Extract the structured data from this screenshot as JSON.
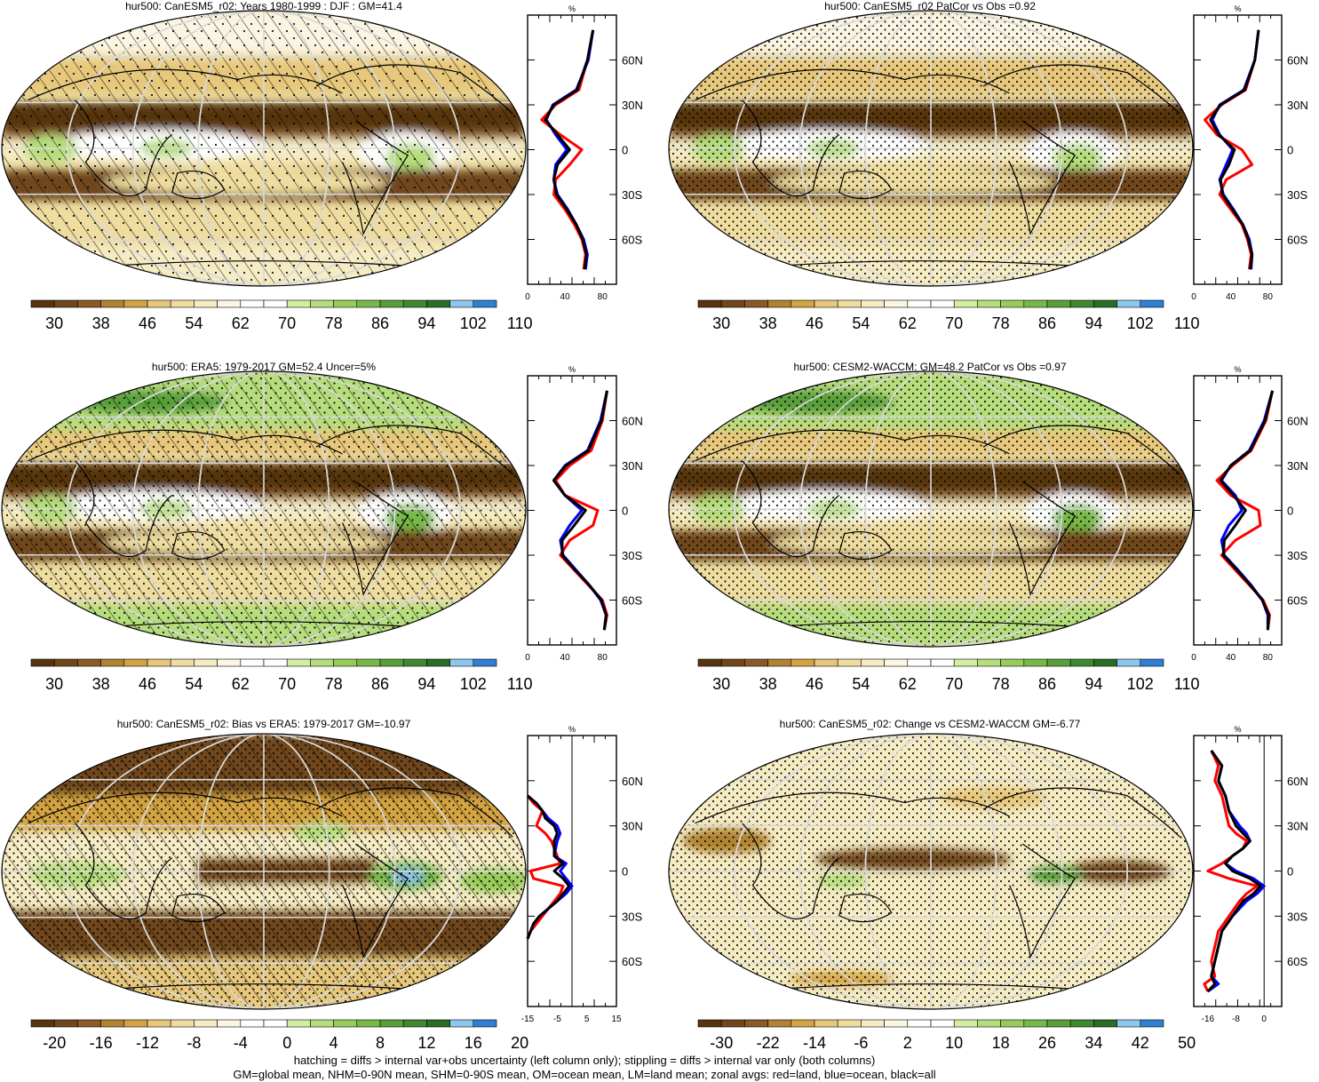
{
  "footer": {
    "line1": "hatching = diffs > internal var+obs uncertainty (left column only); stippling = diffs > internal var only (both columns)",
    "line2": "GM=global mean, NHM=0-90N mean, SHM=0-90S mean, OM=ocean mean, LM=land mean; zonal avgs: red=land, blue=ocean, black=all"
  },
  "palettes": {
    "abs": [
      "#573410",
      "#70461b",
      "#8b5a26",
      "#b08231",
      "#d4a443",
      "#e7c77c",
      "#efdda0",
      "#f6ecc4",
      "#fbf5e3",
      "#ffffff",
      "#ffffff",
      "#d3eea0",
      "#b5dd7c",
      "#97cc59",
      "#78b847",
      "#589f3a",
      "#3e8930",
      "#296d26",
      "#8cc8ee",
      "#2f7fd4"
    ],
    "diff": [
      "#573410",
      "#70461b",
      "#8b5a26",
      "#b08231",
      "#d4a443",
      "#e7c77c",
      "#efdda0",
      "#f6ecc4",
      "#fbf5e3",
      "#ffffff",
      "#ffffff",
      "#d3eea0",
      "#b5dd7c",
      "#97cc59",
      "#78b847",
      "#589f3a",
      "#3e8930",
      "#296d26",
      "#8cc8ee",
      "#2f7fd4"
    ]
  },
  "profile_colors": {
    "land": "#ff0000",
    "ocean": "#0000ff",
    "all": "#000000"
  },
  "lat_ticks": [
    "60N",
    "30N",
    "0",
    "30S",
    "60S"
  ],
  "chart_data": [
    {
      "type": "heatmap",
      "title": "hur500: CanESM5_r02: Years 1980-1999 : DJF : GM=41.4",
      "field": "abs",
      "hatch": true,
      "stipple": "light",
      "colorbar_labels": [
        "30",
        "38",
        "46",
        "54",
        "62",
        "70",
        "78",
        "86",
        "94",
        "102",
        "110"
      ],
      "profile": {
        "unit": "%",
        "xlim": [
          0,
          95
        ],
        "x_ticks": [
          0,
          40,
          80
        ],
        "lat": [
          80,
          60,
          40,
          30,
          20,
          10,
          0,
          -10,
          -20,
          -30,
          -40,
          -50,
          -60,
          -70,
          -80
        ],
        "land": [
          70,
          64,
          55,
          30,
          15,
          35,
          58,
          45,
          30,
          28,
          40,
          50,
          58,
          62,
          60
        ],
        "ocean": [
          70,
          65,
          52,
          27,
          20,
          30,
          42,
          30,
          28,
          32,
          43,
          52,
          60,
          64,
          62
        ],
        "all": [
          70,
          64,
          53,
          28,
          19,
          32,
          45,
          32,
          28,
          31,
          42,
          52,
          59,
          63,
          61
        ]
      }
    },
    {
      "type": "heatmap",
      "title": "hur500: CanESM5_r02 PatCor vs Obs =0.92",
      "field": "abs",
      "hatch": false,
      "stipple": "dense",
      "colorbar_labels": [
        "30",
        "38",
        "46",
        "54",
        "62",
        "70",
        "78",
        "86",
        "94",
        "102",
        "110"
      ],
      "profile": {
        "unit": "%",
        "xlim": [
          0,
          95
        ],
        "x_ticks": [
          0,
          40,
          80
        ],
        "lat": [
          80,
          60,
          40,
          30,
          20,
          10,
          0,
          -10,
          -20,
          -30,
          -40,
          -50,
          -60,
          -70,
          -80
        ],
        "land": [
          70,
          66,
          56,
          30,
          12,
          25,
          52,
          63,
          35,
          28,
          40,
          52,
          58,
          62,
          60
        ],
        "ocean": [
          70,
          66,
          54,
          28,
          20,
          28,
          42,
          35,
          28,
          32,
          43,
          53,
          60,
          63,
          62
        ],
        "all": [
          70,
          66,
          55,
          29,
          18,
          27,
          44,
          38,
          29,
          31,
          42,
          53,
          59,
          63,
          61
        ]
      }
    },
    {
      "type": "heatmap",
      "title": "hur500: ERA5: 1979-2017 GM=52.4 Uncer=5%",
      "field": "abs",
      "hatch": true,
      "stipple": "medium",
      "colorbar_labels": [
        "30",
        "38",
        "46",
        "54",
        "62",
        "70",
        "78",
        "86",
        "94",
        "102",
        "110"
      ],
      "profile": {
        "unit": "%",
        "xlim": [
          0,
          95
        ],
        "x_ticks": [
          0,
          40,
          80
        ],
        "lat": [
          80,
          60,
          40,
          30,
          20,
          10,
          0,
          -10,
          -20,
          -30,
          -40,
          -50,
          -60,
          -70,
          -80
        ],
        "land": [
          85,
          80,
          68,
          45,
          30,
          40,
          75,
          70,
          45,
          35,
          50,
          65,
          80,
          85,
          82
        ],
        "ocean": [
          85,
          78,
          64,
          40,
          28,
          40,
          58,
          45,
          35,
          38,
          52,
          66,
          78,
          84,
          82
        ],
        "all": [
          85,
          79,
          65,
          41,
          28,
          40,
          62,
          50,
          37,
          37,
          51,
          66,
          79,
          84,
          82
        ]
      }
    },
    {
      "type": "heatmap",
      "title": "hur500: CESM2-WACCM: GM=48.2 PatCor vs Obs =0.97",
      "field": "abs",
      "hatch": false,
      "stipple": "dense",
      "colorbar_labels": [
        "30",
        "38",
        "46",
        "54",
        "62",
        "70",
        "78",
        "86",
        "94",
        "102",
        "110"
      ],
      "profile": {
        "unit": "%",
        "xlim": [
          0,
          95
        ],
        "x_ticks": [
          0,
          40,
          80
        ],
        "lat": [
          80,
          60,
          40,
          30,
          20,
          10,
          0,
          -10,
          -20,
          -30,
          -40,
          -50,
          -60,
          -70,
          -80
        ],
        "land": [
          85,
          78,
          62,
          42,
          25,
          40,
          70,
          72,
          45,
          30,
          45,
          60,
          75,
          82,
          80
        ],
        "ocean": [
          85,
          76,
          60,
          40,
          30,
          45,
          52,
          38,
          30,
          33,
          48,
          62,
          74,
          80,
          80
        ],
        "all": [
          85,
          77,
          61,
          40,
          29,
          43,
          56,
          45,
          33,
          32,
          47,
          61,
          74,
          81,
          80
        ]
      }
    },
    {
      "type": "heatmap",
      "title": "hur500: CanESM5_r02: Bias vs ERA5: 1979-2017 GM=-10.97",
      "field": "diff",
      "hatch": true,
      "stipple": "dense",
      "colorbar_labels": [
        "-20",
        "-16",
        "-12",
        "-8",
        "-4",
        "0",
        "4",
        "8",
        "12",
        "16",
        "20"
      ],
      "profile": {
        "unit": "%",
        "xlim": [
          -15,
          15
        ],
        "x_ticks": [
          -15,
          -5,
          5,
          15
        ],
        "zero_line": 0,
        "lat": [
          50,
          45,
          40,
          35,
          30,
          25,
          20,
          10,
          5,
          0,
          -5,
          -10,
          -15,
          -20,
          -25,
          -30,
          -35,
          -40,
          -45
        ],
        "land": [
          -15,
          -13,
          -10,
          -11,
          -12,
          -9,
          -7,
          -5,
          -4,
          -14,
          -13,
          -3,
          -4,
          -6,
          -8,
          -10,
          -12,
          -14,
          -15
        ],
        "ocean": [
          -15,
          -12,
          -10,
          -8,
          -5,
          -4,
          -5,
          -6,
          -2,
          -4,
          -2,
          0,
          -2,
          -5,
          -8,
          -11,
          -13,
          -14,
          -15
        ],
        "all": [
          -15,
          -12,
          -10,
          -9,
          -6,
          -5,
          -6,
          -6,
          -3,
          -6,
          -3,
          -1,
          -3,
          -5,
          -8,
          -11,
          -13,
          -14,
          -15
        ]
      }
    },
    {
      "type": "heatmap",
      "title": "hur500: CanESM5_r02: Change vs CESM2-WACCM GM=-6.77",
      "field": "diff",
      "hatch": false,
      "stipple": "dense",
      "colorbar_labels": [
        "-30",
        "-22",
        "-14",
        "-6",
        "2",
        "10",
        "18",
        "26",
        "34",
        "42",
        "50"
      ],
      "profile": {
        "unit": "%",
        "xlim": [
          -20,
          5
        ],
        "x_ticks": [
          -16,
          -8,
          0
        ],
        "zero_line": 0,
        "lat": [
          80,
          70,
          60,
          50,
          40,
          30,
          25,
          20,
          15,
          10,
          5,
          0,
          -5,
          -10,
          -15,
          -20,
          -30,
          -40,
          -50,
          -60,
          -70,
          -75,
          -80
        ],
        "land": [
          -15,
          -13,
          -14,
          -12,
          -11,
          -10,
          -8,
          -5,
          -6,
          -9,
          -12,
          -16,
          -10,
          -2,
          -5,
          -7,
          -10,
          -13,
          -14,
          -15,
          -14,
          -17,
          -16
        ],
        "ocean": [
          -15,
          -12,
          -13,
          -11,
          -10,
          -7,
          -5,
          -4,
          -6,
          -9,
          -11,
          -8,
          -3,
          0,
          -2,
          -5,
          -9,
          -12,
          -13,
          -14,
          -15,
          -13,
          -16
        ],
        "all": [
          -15,
          -12,
          -13,
          -11,
          -10,
          -8,
          -6,
          -4,
          -6,
          -9,
          -11,
          -9,
          -4,
          -1,
          -3,
          -6,
          -9,
          -12,
          -13,
          -14,
          -15,
          -14,
          -16
        ]
      }
    }
  ]
}
